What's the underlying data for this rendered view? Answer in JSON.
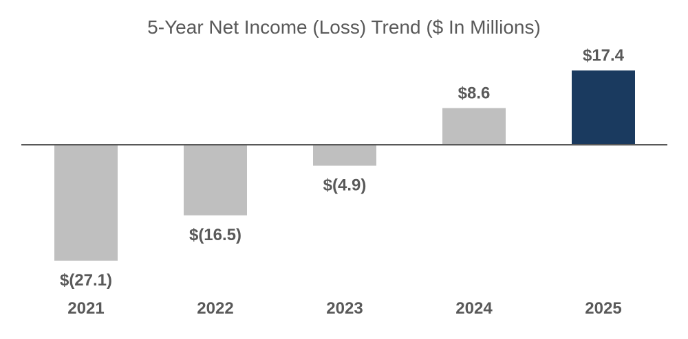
{
  "chart_data": {
    "type": "bar",
    "title": "5-Year Net Income (Loss) Trend ($ In Millions)",
    "categories": [
      "2021",
      "2022",
      "2023",
      "2024",
      "2025"
    ],
    "values": [
      -27.1,
      -16.5,
      -4.9,
      8.6,
      17.4
    ],
    "data_labels": [
      "$(27.1)",
      "$(16.5)",
      "$(4.9)",
      "$8.6",
      "$17.4"
    ],
    "xlabel": "",
    "ylabel": "",
    "grid": false,
    "legend": "none",
    "colors": {
      "default_bar": "#bfbfbf",
      "highlight_bar": "#1a3a5f",
      "axis": "#595959",
      "text": "#595959"
    },
    "highlight_index": 4
  }
}
